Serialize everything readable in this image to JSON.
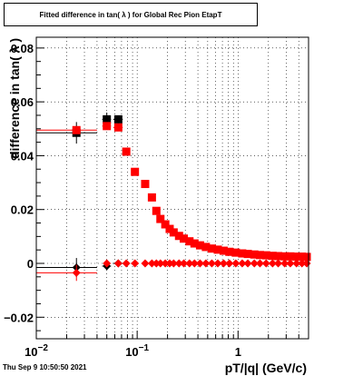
{
  "title": "Fitted difference in tan( λ ) for Global Rec Pion EtapT",
  "footer_text": "Thu Sep  9 10:50:50 2021",
  "chart_data": {
    "type": "scatter",
    "title": "Fitted difference in tan( λ ) for Global Rec Pion EtapT",
    "xlabel": "pT/|q| (GeV/c)",
    "ylabel": "difference in tan( λ )",
    "xscale": "log",
    "xlim": [
      0.01,
      5
    ],
    "ylim": [
      -0.028,
      0.084
    ],
    "grid": true,
    "x_ticks": [
      {
        "value": 0.01,
        "label": "10",
        "exp": "−2"
      },
      {
        "value": 0.1,
        "label": "10",
        "exp": "−1"
      },
      {
        "value": 1,
        "label": "1",
        "exp": ""
      }
    ],
    "y_ticks": [
      {
        "value": -0.02,
        "label": "−0.02"
      },
      {
        "value": 0,
        "label": "0"
      },
      {
        "value": 0.02,
        "label": "0.02"
      },
      {
        "value": 0.04,
        "label": "0.04"
      },
      {
        "value": 0.06,
        "label": "0.06"
      },
      {
        "value": 0.08,
        "label": "0.08"
      }
    ],
    "colors": {
      "black": "#000000",
      "red": "#ff0000"
    },
    "series": [
      {
        "color": "#000000",
        "marker": "square",
        "points": [
          {
            "x": 0.025,
            "y": 0.0485,
            "ey": 0.004,
            "xlo": 0.01,
            "xhi": 0.04
          },
          {
            "x": 0.05,
            "y": 0.0535,
            "ey": 0.0025,
            "xlo": 0.045,
            "xhi": 0.055
          },
          {
            "x": 0.065,
            "y": 0.0535,
            "ey": 0.0015,
            "xlo": 0.058,
            "xhi": 0.072
          }
        ]
      },
      {
        "color": "#ff0000",
        "marker": "square",
        "points": [
          {
            "x": 0.025,
            "y": 0.0495,
            "ey": 0.0,
            "xlo": 0.01,
            "xhi": 0.04
          },
          {
            "x": 0.05,
            "y": 0.051,
            "ey": 0.0,
            "xlo": 0.045,
            "xhi": 0.055
          },
          {
            "x": 0.065,
            "y": 0.0505,
            "ey": 0.0,
            "xlo": 0.058,
            "xhi": 0.072
          },
          {
            "x": 0.078,
            "y": 0.0415
          },
          {
            "x": 0.095,
            "y": 0.034
          },
          {
            "x": 0.12,
            "y": 0.0295
          },
          {
            "x": 0.14,
            "y": 0.0245
          },
          {
            "x": 0.155,
            "y": 0.0195
          },
          {
            "x": 0.17,
            "y": 0.0165
          },
          {
            "x": 0.19,
            "y": 0.0145
          },
          {
            "x": 0.21,
            "y": 0.0128
          },
          {
            "x": 0.23,
            "y": 0.0115
          },
          {
            "x": 0.26,
            "y": 0.0102
          },
          {
            "x": 0.29,
            "y": 0.0092
          },
          {
            "x": 0.33,
            "y": 0.0082
          },
          {
            "x": 0.37,
            "y": 0.0074
          },
          {
            "x": 0.42,
            "y": 0.0067
          },
          {
            "x": 0.48,
            "y": 0.0061
          },
          {
            "x": 0.55,
            "y": 0.0055
          },
          {
            "x": 0.63,
            "y": 0.0051
          },
          {
            "x": 0.72,
            "y": 0.0047
          },
          {
            "x": 0.82,
            "y": 0.0043
          },
          {
            "x": 0.95,
            "y": 0.004
          },
          {
            "x": 1.1,
            "y": 0.0037
          },
          {
            "x": 1.25,
            "y": 0.0035
          },
          {
            "x": 1.45,
            "y": 0.0033
          },
          {
            "x": 1.65,
            "y": 0.0031
          },
          {
            "x": 1.9,
            "y": 0.003
          },
          {
            "x": 2.2,
            "y": 0.0028
          },
          {
            "x": 2.5,
            "y": 0.0027
          },
          {
            "x": 2.9,
            "y": 0.0026
          },
          {
            "x": 3.3,
            "y": 0.0026
          },
          {
            "x": 3.8,
            "y": 0.0025
          },
          {
            "x": 4.3,
            "y": 0.0025
          },
          {
            "x": 4.8,
            "y": 0.0024
          }
        ]
      },
      {
        "color": "#000000",
        "marker": "diamond",
        "points": [
          {
            "x": 0.025,
            "y": -0.0015,
            "ey": 0.0035,
            "xlo": 0.01,
            "xhi": 0.04
          },
          {
            "x": 0.05,
            "y": -0.001,
            "ey": 0.0015,
            "xlo": 0.045,
            "xhi": 0.055
          },
          {
            "x": 0.065,
            "y": 0.0,
            "ey": 0.0005,
            "xlo": 0.058,
            "xhi": 0.072
          }
        ]
      },
      {
        "color": "#ff0000",
        "marker": "diamond",
        "points": [
          {
            "x": 0.025,
            "y": -0.0035,
            "ey": 0.003,
            "xlo": 0.01,
            "xhi": 0.04
          },
          {
            "x": 0.05,
            "y": 0.0,
            "ey": 0.0
          },
          {
            "x": 0.065,
            "y": 0.0
          },
          {
            "x": 0.078,
            "y": 0.0
          },
          {
            "x": 0.095,
            "y": 0.0
          },
          {
            "x": 0.12,
            "y": 0.0
          },
          {
            "x": 0.14,
            "y": 0.0
          },
          {
            "x": 0.155,
            "y": 0.0
          },
          {
            "x": 0.17,
            "y": 0.0
          },
          {
            "x": 0.19,
            "y": 0.0
          },
          {
            "x": 0.21,
            "y": 0.0
          },
          {
            "x": 0.23,
            "y": 0.0
          },
          {
            "x": 0.26,
            "y": 0.0
          },
          {
            "x": 0.29,
            "y": 0.0
          },
          {
            "x": 0.33,
            "y": 0.0
          },
          {
            "x": 0.37,
            "y": 0.0
          },
          {
            "x": 0.42,
            "y": 0.0
          },
          {
            "x": 0.48,
            "y": 0.0
          },
          {
            "x": 0.55,
            "y": 0.0
          },
          {
            "x": 0.63,
            "y": 0.0
          },
          {
            "x": 0.72,
            "y": 0.0
          },
          {
            "x": 0.82,
            "y": 0.0
          },
          {
            "x": 0.95,
            "y": 0.0
          },
          {
            "x": 1.1,
            "y": 0.0
          },
          {
            "x": 1.25,
            "y": 0.0
          },
          {
            "x": 1.45,
            "y": 0.0
          },
          {
            "x": 1.65,
            "y": 0.0
          },
          {
            "x": 1.9,
            "y": 0.0
          },
          {
            "x": 2.2,
            "y": 0.0
          },
          {
            "x": 2.5,
            "y": 0.0
          },
          {
            "x": 2.9,
            "y": 0.0
          },
          {
            "x": 3.3,
            "y": 0.0
          },
          {
            "x": 3.8,
            "y": 0.0
          },
          {
            "x": 4.3,
            "y": 0.0
          },
          {
            "x": 4.8,
            "y": 0.0
          }
        ]
      }
    ]
  }
}
